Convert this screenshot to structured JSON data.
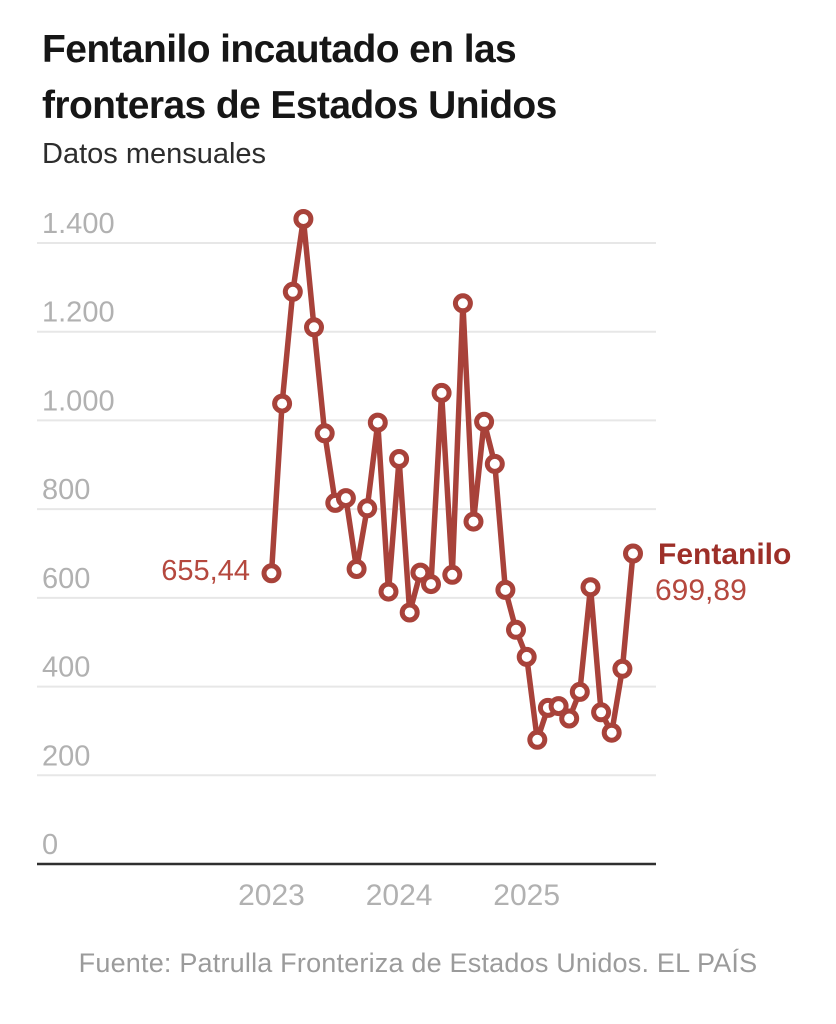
{
  "header": {
    "title_lines": [
      "Fentanilo incautado en las",
      "fronteras de Estados Unidos"
    ],
    "subtitle": "Datos mensuales"
  },
  "chart_data": {
    "type": "line",
    "title": "Fentanilo incautado en las fronteras de Estados Unidos",
    "subtitle": "Datos mensuales",
    "x_unit": "month",
    "series": [
      {
        "name": "Fentanilo",
        "values": [
          655.44,
          1038,
          1290,
          1454,
          1210,
          971,
          814,
          825,
          665,
          802,
          995,
          614,
          913,
          567,
          657,
          631,
          1062,
          652,
          1264,
          772,
          997,
          902,
          618,
          528,
          467,
          280,
          352,
          356,
          328,
          388,
          624,
          342,
          296,
          440,
          699.89
        ]
      }
    ],
    "year_ticks": [
      {
        "label": "2023",
        "month_index": 0
      },
      {
        "label": "2024",
        "month_index": 12
      },
      {
        "label": "2025",
        "month_index": 24
      }
    ],
    "y_ticks": [
      {
        "value": 0,
        "label": "0"
      },
      {
        "value": 200,
        "label": "200"
      },
      {
        "value": 400,
        "label": "400"
      },
      {
        "value": 600,
        "label": "600"
      },
      {
        "value": 800,
        "label": "800"
      },
      {
        "value": 1000,
        "label": "1.000"
      },
      {
        "value": 1200,
        "label": "1.200"
      },
      {
        "value": 1400,
        "label": "1.400"
      }
    ],
    "ylim": [
      0,
      1400
    ],
    "grid": "horizontal-only",
    "legend_position": "right-of-last-point",
    "marker": "open-circle",
    "series_label": "Fentanilo",
    "first_point_label": "655,44",
    "last_point_label": "699,89",
    "colors": {
      "line": "#a8423a",
      "marker_fill": "#ffffff",
      "value_label": "#b5483e",
      "series_label": "#9d2f28",
      "axis_text": "#b1b1b1",
      "gridline": "#e7e7e7",
      "baseline": "#2f2f2f"
    }
  },
  "footer": {
    "source": "Fuente: Patrulla Fronteriza de Estados Unidos. EL PAÍS"
  }
}
